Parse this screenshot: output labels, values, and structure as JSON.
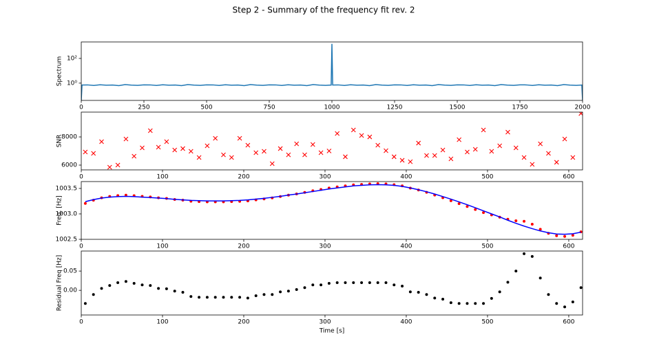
{
  "title": "Step 2 - Summary of the frequency fit rev. 2",
  "chart_data": [
    {
      "type": "line",
      "y_label": "Spectrum",
      "yscale": "log",
      "xlim": [
        0,
        2000
      ],
      "xticks": [
        0,
        250,
        500,
        750,
        1000,
        1250,
        1500,
        1750,
        2000
      ],
      "ylim": [
        0.04,
        2150
      ],
      "yticks": [
        {
          "value": 1,
          "label": "10⁰"
        },
        {
          "value": 100,
          "label": "10²"
        }
      ],
      "x": [
        0,
        3,
        25,
        50,
        75,
        100,
        125,
        150,
        175,
        200,
        225,
        250,
        275,
        300,
        325,
        350,
        375,
        400,
        425,
        450,
        475,
        500,
        525,
        550,
        575,
        600,
        625,
        650,
        675,
        700,
        725,
        750,
        775,
        800,
        825,
        850,
        875,
        900,
        925,
        950,
        975,
        997,
        1000,
        1003,
        1025,
        1050,
        1075,
        1100,
        1125,
        1150,
        1175,
        1200,
        1225,
        1250,
        1275,
        1300,
        1325,
        1350,
        1375,
        1400,
        1425,
        1450,
        1475,
        1500,
        1525,
        1550,
        1575,
        1600,
        1625,
        1650,
        1675,
        1700,
        1725,
        1750,
        1775,
        1800,
        1825,
        1850,
        1875,
        1900,
        1925,
        1950,
        1975,
        1997,
        2000
      ],
      "series": [
        {
          "color": "#1f77b4",
          "marker": "line",
          "values": [
            0.04,
            0.7,
            0.72,
            0.65,
            0.74,
            0.68,
            0.7,
            0.63,
            0.76,
            0.69,
            0.66,
            0.73,
            0.72,
            0.65,
            0.74,
            0.68,
            0.7,
            0.63,
            0.76,
            0.69,
            0.66,
            0.73,
            0.72,
            0.65,
            0.74,
            0.68,
            0.7,
            0.63,
            0.76,
            0.69,
            0.66,
            0.73,
            0.72,
            0.65,
            0.74,
            0.68,
            0.7,
            0.63,
            0.76,
            0.69,
            0.66,
            0.7,
            1500,
            0.7,
            0.72,
            0.65,
            0.74,
            0.68,
            0.7,
            0.63,
            0.76,
            0.69,
            0.66,
            0.73,
            0.72,
            0.65,
            0.74,
            0.68,
            0.7,
            0.63,
            0.76,
            0.69,
            0.66,
            0.73,
            0.72,
            0.65,
            0.74,
            0.68,
            0.7,
            0.63,
            0.76,
            0.69,
            0.66,
            0.73,
            0.72,
            0.65,
            0.74,
            0.68,
            0.7,
            0.63,
            0.76,
            0.69,
            0.66,
            0.7,
            0.04
          ]
        }
      ]
    },
    {
      "type": "scatter",
      "y_label": "SNR",
      "xlim": [
        0,
        617
      ],
      "xticks": [
        0,
        100,
        200,
        300,
        400,
        500,
        600
      ],
      "ylim": [
        5660,
        9760
      ],
      "yticks": [
        6000,
        8000
      ],
      "x": [
        5,
        15,
        25,
        35,
        45,
        55,
        65,
        75,
        85,
        95,
        105,
        115,
        125,
        135,
        145,
        155,
        165,
        175,
        185,
        195,
        205,
        215,
        225,
        235,
        245,
        255,
        265,
        275,
        285,
        295,
        305,
        315,
        325,
        335,
        345,
        355,
        365,
        375,
        385,
        395,
        405,
        415,
        425,
        435,
        445,
        455,
        465,
        475,
        485,
        495,
        505,
        515,
        525,
        535,
        545,
        555,
        565,
        575,
        585,
        595,
        605,
        615
      ],
      "series": [
        {
          "color": "#ff0000",
          "marker": "x",
          "values": [
            6927,
            6830,
            7660,
            5850,
            6000,
            7850,
            6630,
            7220,
            8440,
            7270,
            7660,
            7070,
            7170,
            6980,
            6540,
            7370,
            7900,
            6730,
            6540,
            7900,
            7410,
            6880,
            6980,
            6100,
            7170,
            6730,
            7510,
            6730,
            7460,
            6880,
            7000,
            8240,
            6590,
            8490,
            8100,
            8000,
            7410,
            7020,
            6590,
            6340,
            6240,
            7560,
            6680,
            6680,
            7070,
            6440,
            7800,
            6930,
            7120,
            8490,
            6980,
            7370,
            8340,
            7220,
            6540,
            6050,
            7510,
            6830,
            6200,
            7850,
            6540,
            9660
          ]
        }
      ]
    },
    {
      "type": "line",
      "y_label": "Freq. [Hz]",
      "xlim": [
        0,
        617
      ],
      "xticks": [
        0,
        100,
        200,
        300,
        400,
        500,
        600
      ],
      "ylim": [
        1002.5,
        1003.635
      ],
      "yticks": [
        1002.5,
        {
          "value": 1003,
          "label": "1003.0"
        },
        1003.5
      ],
      "x": [
        5,
        15,
        25,
        35,
        45,
        55,
        65,
        75,
        85,
        95,
        105,
        115,
        125,
        135,
        145,
        155,
        165,
        175,
        185,
        195,
        205,
        215,
        225,
        235,
        245,
        255,
        265,
        275,
        285,
        295,
        305,
        315,
        325,
        335,
        345,
        355,
        365,
        375,
        385,
        395,
        405,
        415,
        425,
        435,
        445,
        455,
        465,
        475,
        485,
        495,
        505,
        515,
        525,
        535,
        545,
        555,
        565,
        575,
        585,
        595,
        605,
        615
      ],
      "series": [
        {
          "color": "#ff0000",
          "marker": "o",
          "values": [
            1003.206,
            1003.269,
            1003.315,
            1003.3425,
            1003.36,
            1003.368,
            1003.358,
            1003.344,
            1003.3325,
            1003.315,
            1003.304,
            1003.283,
            1003.27,
            1003.249,
            1003.242,
            1003.237,
            1003.237,
            1003.237,
            1003.242,
            1003.247,
            1003.255,
            1003.276,
            1003.294,
            1003.314,
            1003.341,
            1003.368,
            1003.392,
            1003.422,
            1003.454,
            1003.479,
            1003.508,
            1003.53,
            1003.55,
            1003.57,
            1003.58,
            1003.59,
            1003.595,
            1003.59,
            1003.574,
            1003.551,
            1003.506,
            1003.47,
            1003.424,
            1003.37,
            1003.317,
            1003.258,
            1003.201,
            1003.146,
            1003.086,
            1003.026,
            1002.979,
            1002.936,
            1002.896,
            1002.865,
            1002.855,
            1002.798,
            1002.697,
            1002.619,
            1002.571,
            1002.557,
            1002.58,
            1002.647
          ]
        },
        {
          "color": "#0000ff",
          "marker": "line",
          "values": [
            1003.24,
            1003.28,
            1003.31,
            1003.33,
            1003.34,
            1003.345,
            1003.34,
            1003.33,
            1003.32,
            1003.31,
            1003.3,
            1003.285,
            1003.275,
            1003.265,
            1003.26,
            1003.255,
            1003.255,
            1003.255,
            1003.26,
            1003.265,
            1003.275,
            1003.29,
            1003.305,
            1003.325,
            1003.345,
            1003.37,
            1003.39,
            1003.415,
            1003.44,
            1003.465,
            1003.49,
            1003.51,
            1003.53,
            1003.55,
            1003.56,
            1003.57,
            1003.575,
            1003.57,
            1003.56,
            1003.54,
            1003.51,
            1003.475,
            1003.435,
            1003.39,
            1003.34,
            1003.29,
            1003.235,
            1003.18,
            1003.12,
            1003.06,
            1003.0,
            1002.94,
            1002.875,
            1002.815,
            1002.76,
            1002.71,
            1002.665,
            1002.63,
            1002.605,
            1002.6,
            1002.61,
            1002.64
          ]
        }
      ]
    },
    {
      "type": "scatter",
      "y_label": "Residual Freq [Hz]",
      "x_label": "Time [s]",
      "xlim": [
        0,
        617
      ],
      "xticks": [
        0,
        100,
        200,
        300,
        400,
        500,
        600
      ],
      "ylim": [
        -0.064,
        0.102
      ],
      "yticks": [
        {
          "value": 0,
          "label": "0.00"
        },
        0.05
      ],
      "x": [
        5,
        15,
        25,
        35,
        45,
        55,
        65,
        75,
        85,
        95,
        105,
        115,
        125,
        135,
        145,
        155,
        165,
        175,
        185,
        195,
        205,
        215,
        225,
        235,
        245,
        255,
        265,
        275,
        285,
        295,
        305,
        315,
        325,
        335,
        345,
        355,
        365,
        375,
        385,
        395,
        405,
        415,
        425,
        435,
        445,
        455,
        465,
        475,
        485,
        495,
        505,
        515,
        525,
        535,
        545,
        555,
        565,
        575,
        585,
        595,
        605,
        615
      ],
      "series": [
        {
          "color": "#000000",
          "marker": "o",
          "values": [
            -0.034,
            -0.011,
            0.005,
            0.0125,
            0.02,
            0.023,
            0.018,
            0.014,
            0.0125,
            0.005,
            0.004,
            -0.002,
            -0.005,
            -0.016,
            -0.018,
            -0.018,
            -0.018,
            -0.018,
            -0.018,
            -0.018,
            -0.02,
            -0.014,
            -0.011,
            -0.011,
            -0.004,
            -0.002,
            0.002,
            0.007,
            0.014,
            0.014,
            0.018,
            0.02,
            0.02,
            0.02,
            0.02,
            0.02,
            0.02,
            0.02,
            0.014,
            0.011,
            -0.004,
            -0.005,
            -0.011,
            -0.02,
            -0.023,
            -0.032,
            -0.034,
            -0.034,
            -0.034,
            -0.034,
            -0.021,
            -0.004,
            0.021,
            0.05,
            0.095,
            0.088,
            0.032,
            -0.011,
            -0.034,
            -0.043,
            -0.03,
            0.007
          ]
        }
      ]
    }
  ]
}
